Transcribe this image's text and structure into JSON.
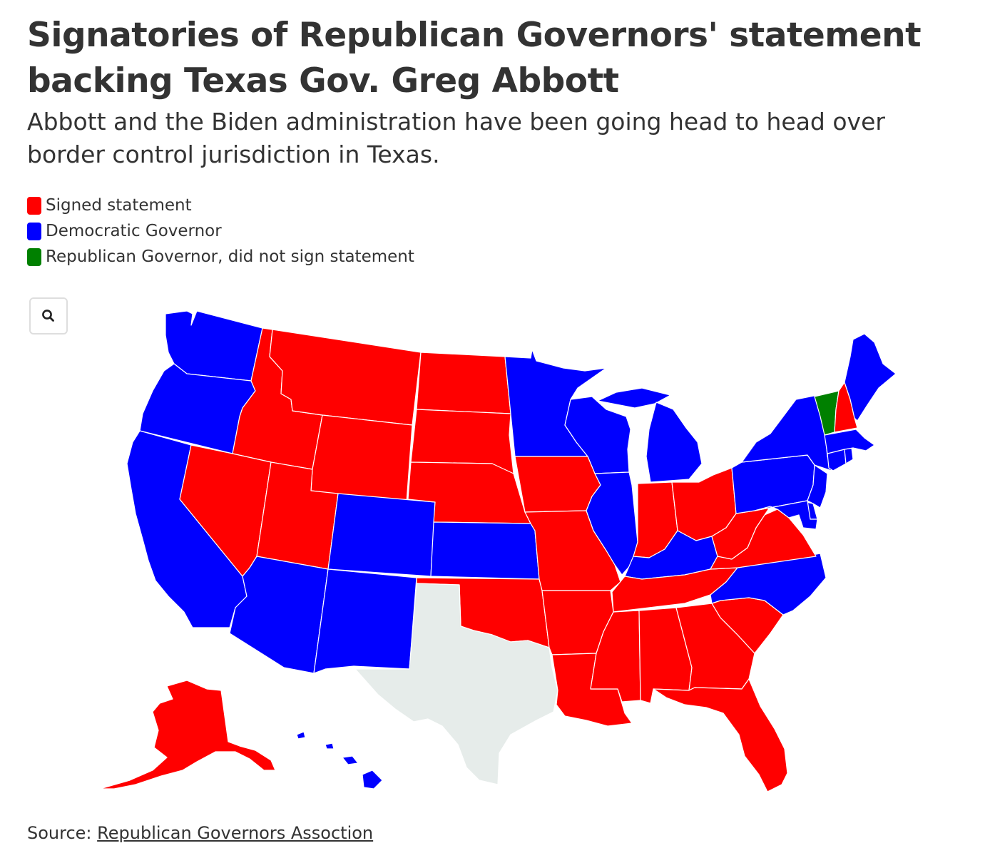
{
  "title": "Signatories of Republican Governors' statement backing Texas Gov. Greg Abbott",
  "subtitle": "Abbott and the Biden administration have been going head to head over border control jurisdiction in Texas.",
  "legend": [
    {
      "label": "Signed statement",
      "color": "#ff0000"
    },
    {
      "label": "Democratic Governor",
      "color": "#0000ff"
    },
    {
      "label": "Republican Governor, did not sign statement",
      "color": "#008000"
    }
  ],
  "colors": {
    "signed": "#ff0000",
    "democratic": "#0000ff",
    "did_not_sign": "#008000",
    "texas": "#e6ecea"
  },
  "zoom": {
    "icon": "search-icon"
  },
  "source": {
    "prefix": "Source:",
    "link_text": "Republican Governors Assoction"
  },
  "states": {
    "washington": "democratic",
    "oregon": "democratic",
    "california": "democratic",
    "idaho": "signed",
    "nevada": "signed",
    "montana": "signed",
    "wyoming": "signed",
    "utah": "signed",
    "arizona": "democratic",
    "colorado": "democratic",
    "new-mexico": "democratic",
    "north-dakota": "signed",
    "south-dakota": "signed",
    "nebraska": "signed",
    "kansas": "democratic",
    "oklahoma": "signed",
    "texas": "texas",
    "minnesota": "democratic",
    "iowa": "signed",
    "missouri": "signed",
    "arkansas": "signed",
    "louisiana": "signed",
    "wisconsin": "democratic",
    "illinois": "democratic",
    "michigan": "democratic",
    "indiana": "signed",
    "ohio": "signed",
    "kentucky": "democratic",
    "tennessee": "signed",
    "mississippi": "signed",
    "alabama": "signed",
    "georgia": "signed",
    "florida": "signed",
    "south-carolina": "signed",
    "north-carolina": "democratic",
    "virginia": "signed",
    "west-virginia": "signed",
    "pennsylvania": "democratic",
    "new-york": "democratic",
    "new-jersey": "democratic",
    "delaware": "democratic",
    "maryland": "democratic",
    "connecticut": "democratic",
    "rhode-island": "democratic",
    "massachusetts": "democratic",
    "vermont": "did_not_sign",
    "new-hampshire": "signed",
    "maine": "democratic",
    "alaska": "signed",
    "hawaii": "democratic"
  }
}
